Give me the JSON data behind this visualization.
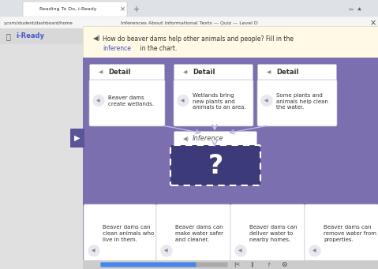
{
  "bg_color": "#7b6fb0",
  "browser_bar_color": "#f1f1f1",
  "tab_text": "Reading To Do, i-Ready",
  "url_text": "y.com/student/dashboard/home",
  "page_title": "Inferences About Informational Texts — Quiz — Level D",
  "app_name": "i-Ready",
  "question_text": "How do beaver dams help other animals and people? Fill in the",
  "question_text2": "inference in the chart.",
  "detail_boxes": [
    {
      "label": "Detail",
      "text": "Beaver dams\ncreate wetlands."
    },
    {
      "label": "Detail",
      "text": "Wetlands bring\nnew plants and\nanimals to an area."
    },
    {
      "label": "Detail",
      "text": "Some plants and\nanimals help clean\nthe water."
    }
  ],
  "inference_label": "Inference",
  "question_mark": "?",
  "answer_choices": [
    "Beaver dams can\nclean animals who\nlive in them.",
    "Beaver dams can\nmake water safer\nand cleaner.",
    "Beaver dams can\ndeliver water to\nnearby homes.",
    "Beaver dams can\nremove water from\nproperties."
  ],
  "box_white": "#ffffff",
  "box_dark_blue": "#3d3a7a",
  "text_dark": "#333333",
  "text_blue": "#4455cc",
  "dashed_box_color": "#3d3a7a",
  "question_bg": "#fff9e6",
  "speaker_color": "#888888",
  "sidebar_color": "#e0e0e0",
  "purple_bg": "#7b6fb0"
}
